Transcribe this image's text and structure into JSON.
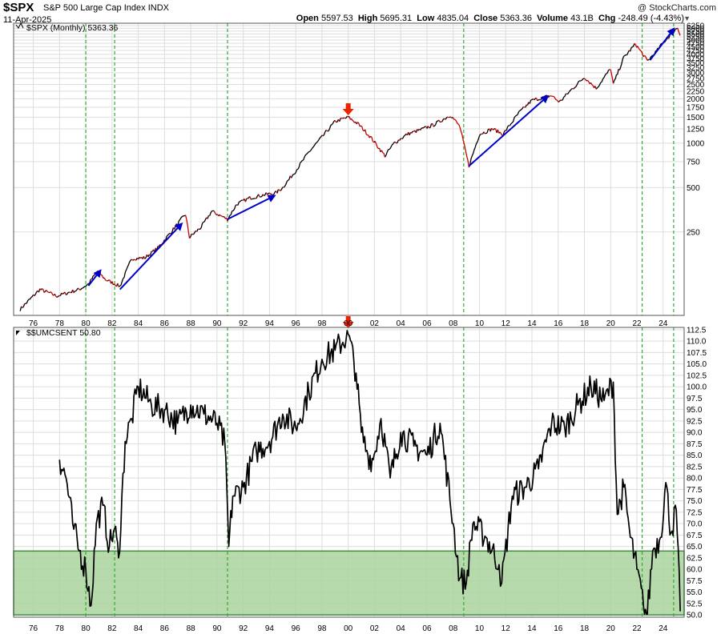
{
  "header": {
    "symbol": "$SPX",
    "name": "S&P 500 Large Cap Index",
    "exchange": "INDX",
    "date": "11-Apr-2025",
    "credit": "@ StockCharts.com",
    "open_label": "Open",
    "open": "5597.53",
    "high_label": "High",
    "high": "5695.31",
    "low_label": "Low",
    "low": "4835.04",
    "close_label": "Close",
    "close": "5363.36",
    "volume_label": "Volume",
    "volume": "43.1B",
    "chg_label": "Chg",
    "chg": "-248.49 (-4.43%)"
  },
  "colors": {
    "price_up": "#000000",
    "price_down": "#cc0000",
    "trend_arrow": "#0000cc",
    "marker_arrow": "#ee2200",
    "event_line": "#33aa33",
    "sentiment_zone": "#a9d39c",
    "sentiment_zone_border": "#3f8f3f",
    "grid": "#dddddd"
  },
  "chart_data": [
    {
      "type": "line",
      "label": "$SPX (Monthly) 5363.36",
      "scale": "log",
      "x_ticks": [
        "76",
        "78",
        "80",
        "82",
        "84",
        "86",
        "88",
        "90",
        "92",
        "94",
        "96",
        "98",
        "00",
        "02",
        "04",
        "06",
        "08",
        "10",
        "12",
        "14",
        "16",
        "18",
        "20",
        "22",
        "24"
      ],
      "y_ticks": [
        6250,
        6000,
        5750,
        5500,
        5250,
        5000,
        4750,
        4500,
        4250,
        4000,
        3750,
        3500,
        3250,
        3000,
        2750,
        2500,
        2250,
        2000,
        1750,
        1500,
        1250,
        1000,
        750,
        500,
        250
      ],
      "x": [
        1975.0,
        1976.5,
        1977.8,
        1978.5,
        1979.5,
        1980.2,
        1980.9,
        1981.5,
        1982.6,
        1983.5,
        1984.5,
        1985.5,
        1986.5,
        1987.6,
        1987.9,
        1988.8,
        1989.6,
        1990.8,
        1991.5,
        1992.5,
        1993.5,
        1994.5,
        1995.0,
        1996.0,
        1997.0,
        1998.0,
        1999.0,
        2000.0,
        2000.8,
        2001.7,
        2002.8,
        2003.5,
        2004.5,
        2005.5,
        2006.5,
        2007.8,
        2008.5,
        2009.2,
        2010.0,
        2011.0,
        2011.8,
        2013.0,
        2014.0,
        2015.5,
        2016.1,
        2017.0,
        2018.0,
        2018.9,
        2020.0,
        2020.2,
        2021.0,
        2021.9,
        2022.8,
        2023.5,
        2024.0,
        2025.1,
        2025.3
      ],
      "y": [
        75,
        102,
        92,
        96,
        102,
        111,
        136,
        119,
        107,
        165,
        167,
        195,
        250,
        330,
        230,
        270,
        345,
        305,
        385,
        425,
        445,
        460,
        500,
        650,
        870,
        1100,
        1400,
        1500,
        1340,
        1100,
        820,
        1000,
        1150,
        1230,
        1330,
        1550,
        1300,
        700,
        1150,
        1250,
        1150,
        1600,
        1950,
        2100,
        1900,
        2300,
        2800,
        2350,
        3200,
        2500,
        3800,
        4700,
        3600,
        4200,
        4800,
        6100,
        5363.36
      ],
      "trend_arrows": [
        {
          "from": [
            1982.6,
            102
          ],
          "to": [
            1987.4,
            290
          ]
        },
        {
          "from": [
            1990.8,
            305
          ],
          "to": [
            1994.5,
            445
          ]
        },
        {
          "from": [
            1980.2,
            108
          ],
          "to": [
            1981.2,
            140
          ]
        },
        {
          "from": [
            2009.2,
            700
          ],
          "to": [
            2015.3,
            2120
          ]
        },
        {
          "from": [
            2023.0,
            3650
          ],
          "to": [
            2024.9,
            6100
          ]
        }
      ],
      "markers": [
        {
          "x": 2000.0,
          "direction": "down"
        }
      ]
    },
    {
      "type": "line",
      "label": "$$UMCSENT 50.80",
      "x_ticks": [
        "76",
        "78",
        "80",
        "82",
        "84",
        "86",
        "88",
        "90",
        "92",
        "94",
        "96",
        "98",
        "00",
        "02",
        "04",
        "06",
        "08",
        "10",
        "12",
        "14",
        "16",
        "18",
        "20",
        "22",
        "24"
      ],
      "y_ticks": [
        112.5,
        110.0,
        107.5,
        105.0,
        102.5,
        100.0,
        97.5,
        95.0,
        92.5,
        90.0,
        87.5,
        85.0,
        82.5,
        80.0,
        77.5,
        75.0,
        72.5,
        70.0,
        67.5,
        65.0,
        62.5,
        60.0,
        57.5,
        55.0,
        52.5,
        50.0
      ],
      "ylim": [
        49.5,
        113
      ],
      "x": [
        1978.0,
        1978.5,
        1979.0,
        1979.5,
        1980.0,
        1980.4,
        1980.8,
        1981.3,
        1981.8,
        1982.2,
        1982.5,
        1983.0,
        1983.5,
        1984.0,
        1985.0,
        1986.0,
        1987.0,
        1988.0,
        1989.0,
        1990.0,
        1990.6,
        1990.9,
        1991.2,
        1992.0,
        1993.0,
        1994.0,
        1995.0,
        1996.0,
        1997.0,
        1998.0,
        1999.0,
        2000.0,
        2000.6,
        2001.0,
        2001.5,
        2001.9,
        2002.5,
        2003.2,
        2004.0,
        2005.0,
        2006.0,
        2007.0,
        2008.0,
        2008.5,
        2009.0,
        2009.5,
        2010.5,
        2011.5,
        2011.7,
        2012.5,
        2013.5,
        2014.5,
        2015.5,
        2016.5,
        2017.5,
        2018.5,
        2019.5,
        2020.2,
        2020.5,
        2021.0,
        2021.5,
        2022.0,
        2022.5,
        2022.8,
        2023.2,
        2023.8,
        2024.2,
        2024.6,
        2025.0,
        2025.3
      ],
      "y": [
        84.0,
        80.0,
        70.0,
        64.0,
        60.0,
        52.0,
        70.0,
        74.0,
        65.0,
        69.0,
        62.5,
        88.0,
        93.0,
        100.0,
        96.0,
        95.0,
        92.0,
        96.0,
        94.0,
        92.0,
        87.5,
        65.0,
        76.0,
        78.0,
        86.0,
        88.0,
        94.0,
        91.0,
        99.0,
        106.0,
        108.0,
        111.5,
        103.0,
        90.0,
        85.0,
        84.0,
        93.0,
        80.0,
        90.0,
        87.0,
        85.0,
        92.0,
        70.0,
        58.0,
        57.0,
        70.0,
        67.0,
        61.0,
        57.0,
        76.0,
        78.0,
        82.0,
        92.0,
        91.0,
        96.0,
        100.0,
        97.0,
        101.0,
        72.0,
        78.0,
        67.0,
        60.0,
        52.0,
        50.0,
        64.0,
        67.0,
        79.0,
        68.0,
        73.0,
        50.8
      ],
      "shaded_band": [
        50.0,
        64.0
      ],
      "markers": [
        {
          "x": 2000.0,
          "direction": "down"
        }
      ]
    }
  ],
  "event_lines_x": [
    1980.0,
    1982.2,
    1990.8,
    2008.8,
    2022.4,
    2024.8
  ]
}
